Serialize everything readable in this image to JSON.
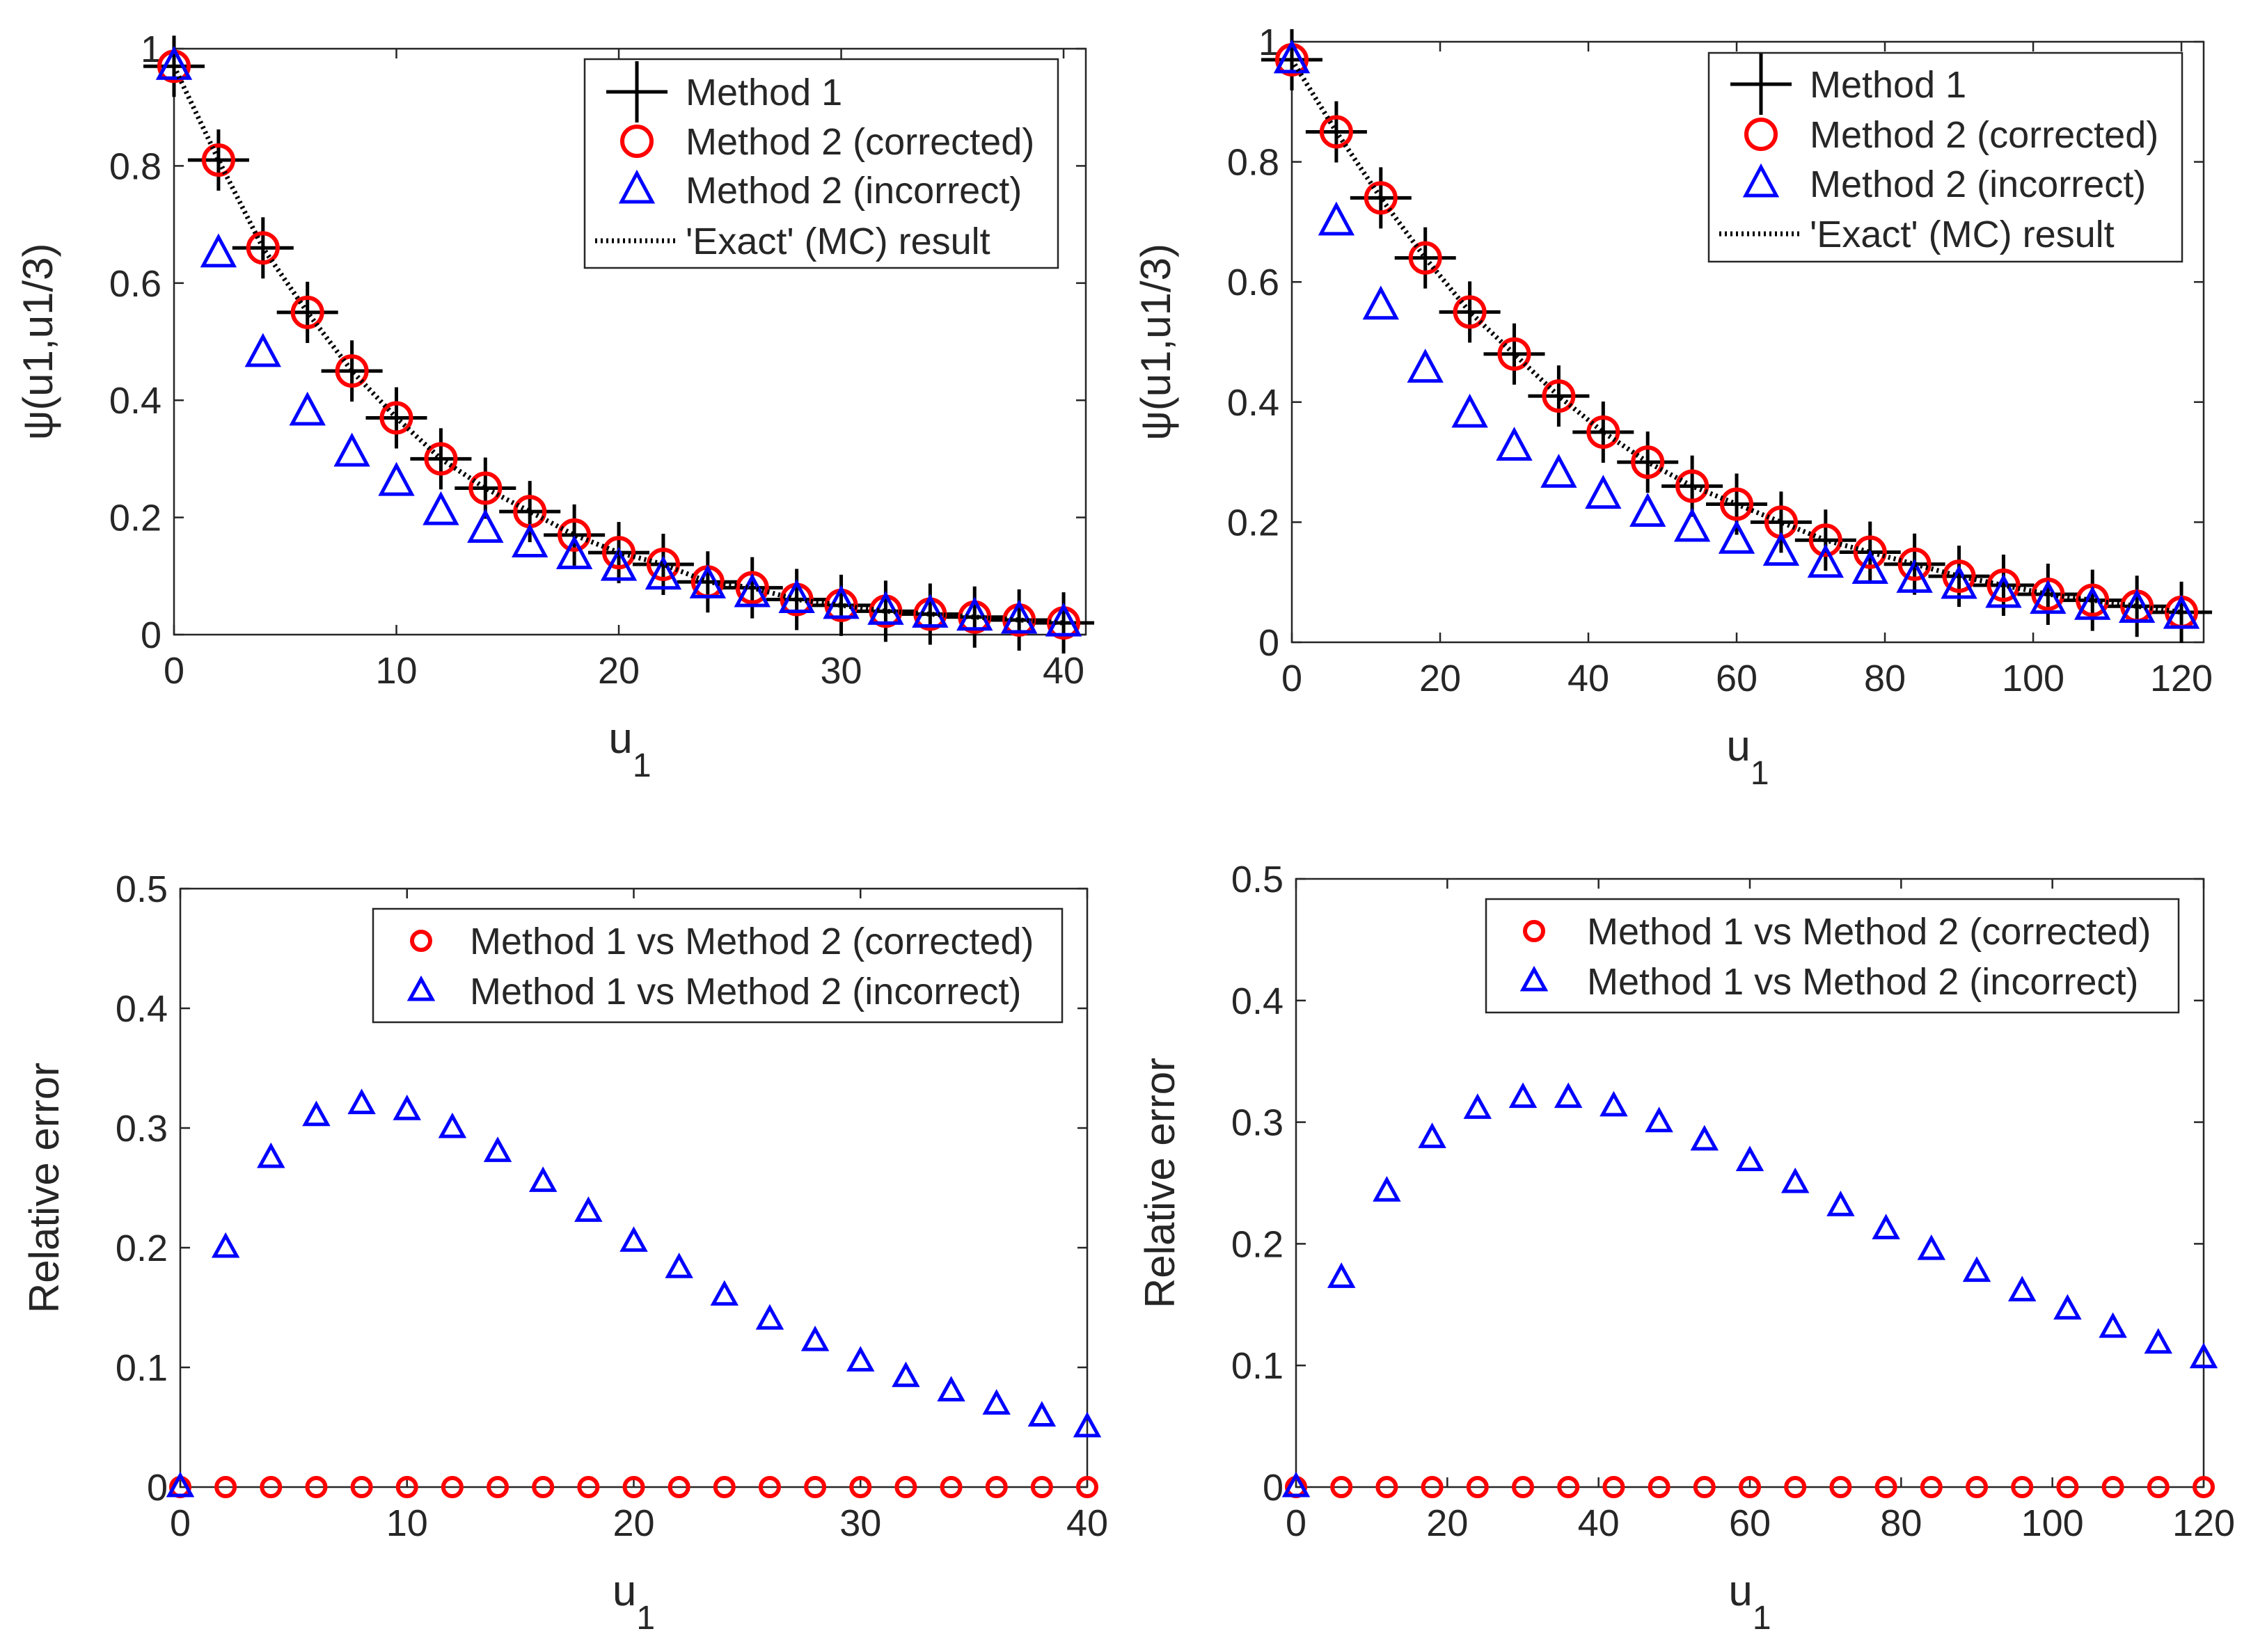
{
  "colors": {
    "method1": "#000000",
    "corrected": "#ff0000",
    "incorrect": "#0000ff",
    "exact": "#000000",
    "axis": "#262626"
  },
  "chart_data": [
    {
      "id": "tl",
      "type": "scatter",
      "xlabel": "u",
      "xlabel_sub": "1",
      "ylabel": "ψ(u1,u1/3)",
      "xlim": [
        0,
        41
      ],
      "ylim": [
        0,
        1
      ],
      "xticks": [
        0,
        10,
        20,
        30,
        40
      ],
      "xtick_labels": [
        "0",
        "10",
        "20",
        "30",
        "40"
      ],
      "yticks": [
        0,
        0.2,
        0.4,
        0.6,
        0.8,
        1
      ],
      "ytick_labels": [
        "0",
        "0.2",
        "0.4",
        "0.6",
        "0.8",
        "1"
      ],
      "legend": {
        "position": "top-right",
        "entries": [
          "Method 1",
          "Method 2 (corrected)",
          "Method 2 (incorrect)",
          "'Exact' (MC) result"
        ]
      },
      "x": [
        0,
        2,
        4,
        6,
        8,
        10,
        12,
        14,
        16,
        18,
        20,
        22,
        24,
        26,
        28,
        30,
        32,
        34,
        36,
        38,
        40
      ],
      "series": [
        {
          "name": "Method 1",
          "marker": "plus",
          "values": [
            0.97,
            0.81,
            0.66,
            0.55,
            0.45,
            0.37,
            0.3,
            0.25,
            0.21,
            0.17,
            0.14,
            0.12,
            0.09,
            0.08,
            0.06,
            0.05,
            0.04,
            0.035,
            0.03,
            0.025,
            0.02
          ]
        },
        {
          "name": "Method 2 (corrected)",
          "marker": "circle",
          "values": [
            0.97,
            0.81,
            0.66,
            0.55,
            0.45,
            0.37,
            0.3,
            0.25,
            0.21,
            0.17,
            0.14,
            0.12,
            0.09,
            0.08,
            0.06,
            0.05,
            0.04,
            0.035,
            0.03,
            0.025,
            0.02
          ]
        },
        {
          "name": "Method 2 (incorrect)",
          "marker": "triangle",
          "values": [
            0.97,
            0.65,
            0.48,
            0.38,
            0.31,
            0.26,
            0.21,
            0.18,
            0.155,
            0.135,
            0.115,
            0.1,
            0.085,
            0.07,
            0.06,
            0.05,
            0.04,
            0.035,
            0.03,
            0.025,
            0.02
          ]
        },
        {
          "name": "'Exact' (MC) result",
          "marker": "dotted-line",
          "values": [
            0.97,
            0.81,
            0.66,
            0.55,
            0.45,
            0.37,
            0.3,
            0.25,
            0.21,
            0.17,
            0.14,
            0.12,
            0.09,
            0.08,
            0.06,
            0.05,
            0.04,
            0.035,
            0.03,
            0.025,
            0.02
          ]
        }
      ]
    },
    {
      "id": "tr",
      "type": "scatter",
      "xlabel": "u",
      "xlabel_sub": "1",
      "ylabel": "ψ(u1,u1/3)",
      "xlim": [
        0,
        123
      ],
      "ylim": [
        0,
        1
      ],
      "xticks": [
        0,
        20,
        40,
        60,
        80,
        100,
        120
      ],
      "xtick_labels": [
        "0",
        "20",
        "40",
        "60",
        "80",
        "100",
        "120"
      ],
      "yticks": [
        0,
        0.2,
        0.4,
        0.6,
        0.8,
        1
      ],
      "ytick_labels": [
        "0",
        "0.2",
        "0.4",
        "0.6",
        "0.8",
        "1"
      ],
      "legend": {
        "position": "top-right",
        "entries": [
          "Method 1",
          "Method 2 (corrected)",
          "Method 2 (incorrect)",
          "'Exact' (MC) result"
        ]
      },
      "x": [
        0,
        6,
        12,
        18,
        24,
        30,
        36,
        42,
        48,
        54,
        60,
        66,
        72,
        78,
        84,
        90,
        96,
        102,
        108,
        114,
        120
      ],
      "series": [
        {
          "name": "Method 1",
          "marker": "plus",
          "values": [
            0.97,
            0.85,
            0.74,
            0.64,
            0.55,
            0.48,
            0.41,
            0.35,
            0.3,
            0.26,
            0.23,
            0.2,
            0.17,
            0.15,
            0.13,
            0.11,
            0.095,
            0.08,
            0.07,
            0.06,
            0.05
          ]
        },
        {
          "name": "Method 2 (corrected)",
          "marker": "circle",
          "values": [
            0.97,
            0.85,
            0.74,
            0.64,
            0.55,
            0.48,
            0.41,
            0.35,
            0.3,
            0.26,
            0.23,
            0.2,
            0.17,
            0.15,
            0.13,
            0.11,
            0.095,
            0.08,
            0.07,
            0.06,
            0.05
          ]
        },
        {
          "name": "Method 2 (incorrect)",
          "marker": "triangle",
          "values": [
            0.97,
            0.7,
            0.56,
            0.455,
            0.38,
            0.325,
            0.28,
            0.245,
            0.215,
            0.19,
            0.17,
            0.15,
            0.13,
            0.12,
            0.105,
            0.095,
            0.08,
            0.07,
            0.06,
            0.055,
            0.045
          ]
        },
        {
          "name": "'Exact' (MC) result",
          "marker": "dotted-line",
          "values": [
            0.97,
            0.85,
            0.74,
            0.64,
            0.55,
            0.48,
            0.41,
            0.35,
            0.3,
            0.26,
            0.23,
            0.2,
            0.17,
            0.15,
            0.13,
            0.11,
            0.095,
            0.08,
            0.07,
            0.06,
            0.05
          ]
        }
      ]
    },
    {
      "id": "bl",
      "type": "scatter",
      "xlabel": "u",
      "xlabel_sub": "1",
      "ylabel": "Relative error",
      "xlim": [
        0,
        40
      ],
      "ylim": [
        0,
        0.5
      ],
      "xticks": [
        0,
        10,
        20,
        30,
        40
      ],
      "xtick_labels": [
        "0",
        "10",
        "20",
        "30",
        "40"
      ],
      "yticks": [
        0,
        0.1,
        0.2,
        0.3,
        0.4,
        0.5
      ],
      "ytick_labels": [
        "0",
        "0.1",
        "0.2",
        "0.3",
        "0.4",
        "0.5"
      ],
      "legend": {
        "position": "top-right",
        "entries": [
          "Method 1 vs Method 2 (corrected)",
          "Method 1 vs Method 2 (incorrect)"
        ]
      },
      "x": [
        0,
        2,
        4,
        6,
        8,
        10,
        12,
        14,
        16,
        18,
        20,
        22,
        24,
        26,
        28,
        30,
        32,
        34,
        36,
        38,
        40
      ],
      "series": [
        {
          "name": "Method 1 vs Method 2 (corrected)",
          "marker": "circle-small",
          "values": [
            0,
            0,
            0,
            0,
            0,
            0,
            0,
            0,
            0,
            0,
            0,
            0,
            0,
            0,
            0,
            0,
            0,
            0,
            0,
            0,
            0
          ]
        },
        {
          "name": "Method 1 vs Method 2 (incorrect)",
          "marker": "triangle-small",
          "values": [
            0,
            0.2,
            0.275,
            0.31,
            0.32,
            0.315,
            0.3,
            0.28,
            0.255,
            0.23,
            0.205,
            0.183,
            0.16,
            0.14,
            0.122,
            0.105,
            0.092,
            0.08,
            0.069,
            0.059,
            0.05
          ]
        }
      ]
    },
    {
      "id": "br",
      "type": "scatter",
      "xlabel": "u",
      "xlabel_sub": "1",
      "ylabel": "Relative error",
      "xlim": [
        0,
        120
      ],
      "ylim": [
        0,
        0.5
      ],
      "xticks": [
        0,
        20,
        40,
        60,
        80,
        100,
        120
      ],
      "xtick_labels": [
        "0",
        "20",
        "40",
        "60",
        "80",
        "100",
        "120"
      ],
      "yticks": [
        0,
        0.1,
        0.2,
        0.3,
        0.4,
        0.5
      ],
      "ytick_labels": [
        "0",
        "0.1",
        "0.2",
        "0.3",
        "0.4",
        "0.5"
      ],
      "legend": {
        "position": "top-right",
        "entries": [
          "Method 1 vs Method 2 (corrected)",
          "Method 1 vs Method 2 (incorrect)"
        ]
      },
      "x": [
        0,
        6,
        12,
        18,
        24,
        30,
        36,
        42,
        48,
        54,
        60,
        66,
        72,
        78,
        84,
        90,
        96,
        102,
        108,
        114,
        120
      ],
      "series": [
        {
          "name": "Method 1 vs Method 2 (corrected)",
          "marker": "circle-small",
          "values": [
            0,
            0,
            0,
            0,
            0,
            0,
            0,
            0,
            0,
            0,
            0,
            0,
            0,
            0,
            0,
            0,
            0,
            0,
            0,
            0,
            0
          ]
        },
        {
          "name": "Method 1 vs Method 2 (incorrect)",
          "marker": "triangle-small",
          "values": [
            0,
            0.172,
            0.243,
            0.287,
            0.311,
            0.32,
            0.32,
            0.313,
            0.3,
            0.285,
            0.268,
            0.25,
            0.231,
            0.212,
            0.195,
            0.177,
            0.161,
            0.146,
            0.131,
            0.118,
            0.106
          ]
        }
      ]
    }
  ]
}
